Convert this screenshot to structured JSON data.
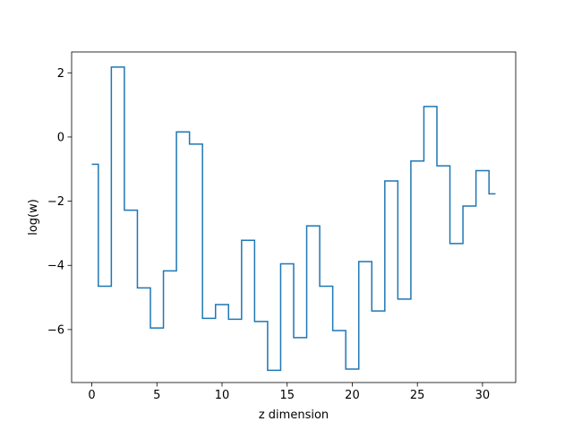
{
  "chart_data": {
    "type": "line",
    "drawstyle": "steps-mid",
    "title": "",
    "xlabel": "z dimension",
    "ylabel": "log(w)",
    "xlim": [
      -1.55,
      32.55
    ],
    "ylim": [
      -7.65,
      2.65
    ],
    "xticks": [
      0,
      5,
      10,
      15,
      20,
      25,
      30
    ],
    "xtick_labels": [
      "0",
      "5",
      "10",
      "15",
      "20",
      "25",
      "30"
    ],
    "yticks": [
      -6,
      -4,
      -2,
      0,
      2
    ],
    "ytick_labels": [
      "−6",
      "−4",
      "−2",
      "0",
      "2"
    ],
    "grid": false,
    "series": [
      {
        "color": "#1f77b4",
        "x": [
          0,
          1,
          2,
          3,
          4,
          5,
          6,
          7,
          8,
          9,
          10,
          11,
          12,
          13,
          14,
          15,
          16,
          17,
          18,
          19,
          20,
          21,
          22,
          23,
          24,
          25,
          26,
          27,
          28,
          29,
          30,
          31
        ],
        "y": [
          -0.85,
          -4.65,
          2.18,
          -2.28,
          -4.7,
          -5.95,
          -4.17,
          0.16,
          -0.22,
          -5.65,
          -5.22,
          -5.68,
          -3.22,
          -5.75,
          -7.27,
          -3.95,
          -6.25,
          -2.77,
          -4.65,
          -6.03,
          -7.23,
          -3.88,
          -5.42,
          -1.37,
          -5.05,
          -0.75,
          0.95,
          -0.9,
          -3.32,
          -2.15,
          -1.05,
          -1.77
        ]
      }
    ]
  }
}
